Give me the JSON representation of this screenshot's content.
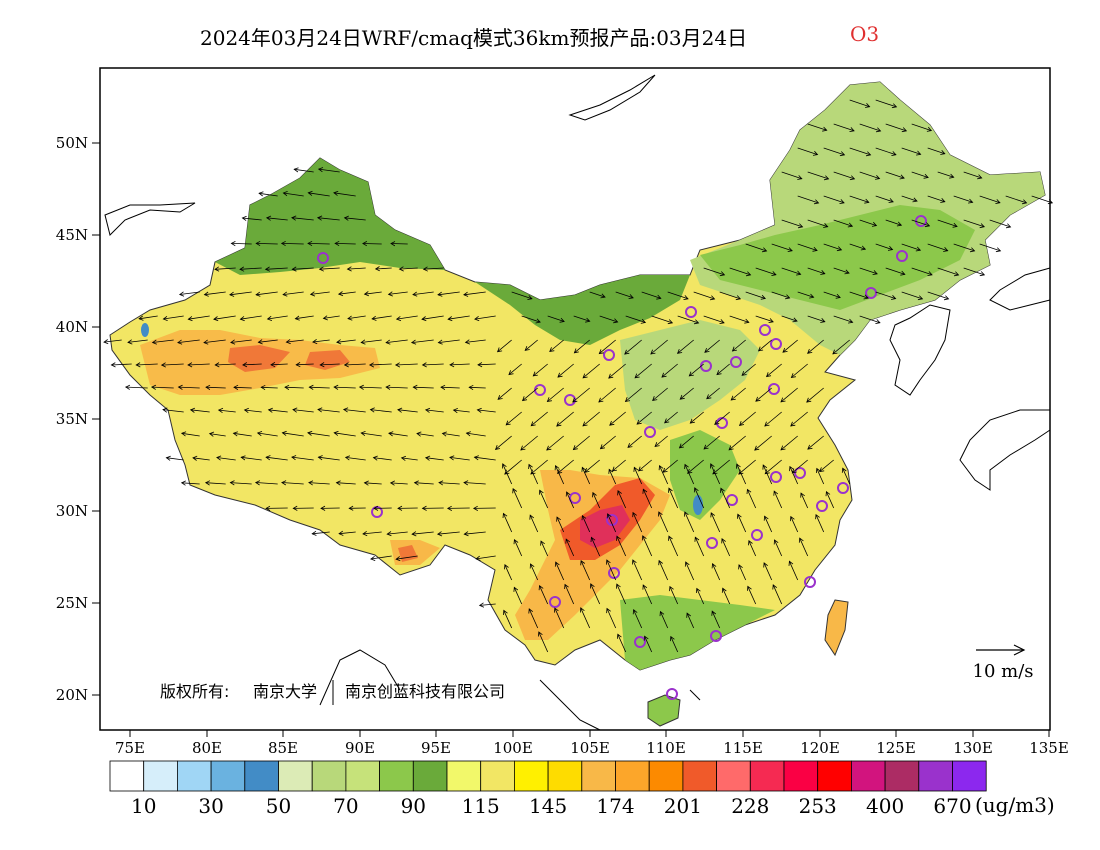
{
  "title": {
    "main": "2024年03月24日WRF/cmaq模式36km预报产品:03月24日",
    "species": "O3",
    "species_color": "#e03030"
  },
  "map": {
    "lat_labels": [
      "50N",
      "45N",
      "40N",
      "35N",
      "30N",
      "25N",
      "20N"
    ],
    "lon_labels": [
      "75E",
      "80E",
      "85E",
      "90E",
      "95E",
      "100E",
      "105E",
      "110E",
      "115E",
      "120E",
      "125E",
      "130E",
      "135E"
    ],
    "wind_reference": "10 m/s",
    "copyright_left": "版权所有:",
    "copyright_org1": "南京大学",
    "copyright_org2": "南京创蓝科技有限公司",
    "colors": {
      "dark_green": "#6aaa3a",
      "mid_green": "#8cc84b",
      "light_green": "#b8d87a",
      "yellow": "#f2ee55",
      "orange": "#f5b040",
      "red_orange": "#f07838",
      "magenta": "#e0305a",
      "ocean": "#ffffff"
    }
  },
  "legend": {
    "colors": [
      "#ffffff",
      "#d6eefa",
      "#a0d6f5",
      "#6ab2e0",
      "#428cc6",
      "#dcebb6",
      "#b8d87a",
      "#c6e27a",
      "#8cc84b",
      "#6aaa3a",
      "#f2f86a",
      "#f2e664",
      "#fff000",
      "#fedc00",
      "#f8b848",
      "#fca62a",
      "#fc8a00",
      "#f05a2a",
      "#ff6a6a",
      "#f52a52",
      "#fa0044",
      "#ff0000",
      "#d2147e",
      "#ac2c64",
      "#9a32cc",
      "#8c28ee"
    ],
    "labels": [
      "10",
      "30",
      "50",
      "70",
      "90",
      "115",
      "145",
      "174",
      "201",
      "228",
      "253",
      "400",
      "670"
    ],
    "unit": "(ug/m3)"
  }
}
